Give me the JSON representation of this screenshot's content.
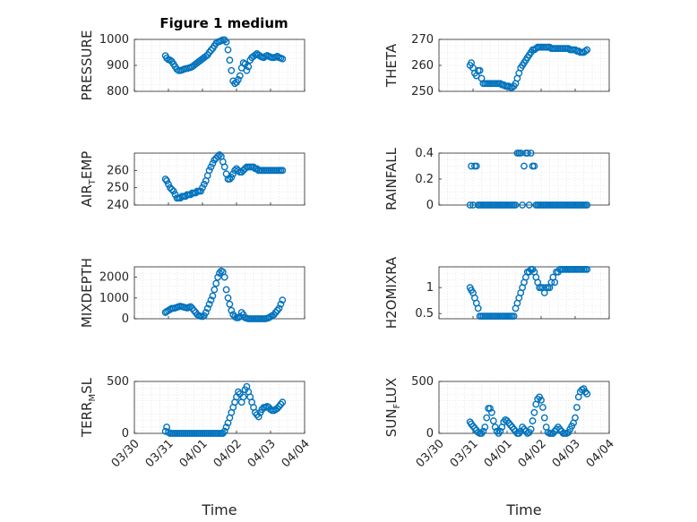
{
  "figure": {
    "title": "Figure 1 medium"
  },
  "colors": {
    "marker": "#0072BD",
    "axis": "#262626",
    "grid": "#d9d9d9",
    "background": "#ffffff"
  },
  "chart_data": [
    {
      "type": "scatter",
      "ylabel": "PRESSURE",
      "ylim": [
        800,
        1000
      ],
      "yticks": [
        "800",
        "900",
        "1000"
      ],
      "x": [
        0.73,
        0.76,
        0.8,
        0.84,
        0.88,
        0.92,
        0.96,
        1.0,
        1.04,
        1.08,
        1.12,
        1.16,
        1.2,
        1.24,
        1.28,
        1.32,
        1.36,
        1.4,
        1.44,
        1.48,
        1.52,
        1.56,
        1.6,
        1.64,
        1.68,
        1.72,
        1.76,
        1.8,
        1.84,
        1.88,
        1.92,
        1.96,
        2.0,
        2.04,
        2.08,
        2.12,
        2.16,
        2.2,
        2.24,
        2.28,
        2.32,
        2.36,
        2.4,
        2.44,
        2.48,
        2.52,
        2.56,
        2.6,
        2.64,
        2.68,
        2.72,
        2.76,
        2.8,
        2.84,
        2.88,
        2.92,
        2.96,
        3.0,
        3.04,
        3.08,
        3.12,
        3.16,
        3.2,
        3.24,
        3.28,
        3.32,
        3.36,
        3.4,
        3.44,
        3.48
      ],
      "y": [
        937,
        928,
        922,
        920,
        915,
        905,
        895,
        885,
        880,
        880,
        882,
        885,
        887,
        888,
        890,
        892,
        895,
        900,
        905,
        910,
        915,
        920,
        925,
        930,
        935,
        940,
        950,
        958,
        965,
        975,
        985,
        990,
        992,
        995,
        998,
        998,
        990,
        960,
        920,
        880,
        840,
        830,
        835,
        845,
        860,
        890,
        910,
        905,
        880,
        895,
        920,
        930,
        935,
        940,
        945,
        940,
        935,
        932,
        930,
        935,
        938,
        935,
        932,
        930,
        930,
        932,
        935,
        930,
        928,
        925
      ]
    },
    {
      "type": "scatter",
      "ylabel": "THETA",
      "ylim": [
        250,
        270
      ],
      "yticks": [
        "250",
        "260",
        "270"
      ],
      "x": [
        0.73,
        0.76,
        0.8,
        0.84,
        0.88,
        0.92,
        0.96,
        1.0,
        1.04,
        1.08,
        1.12,
        1.16,
        1.2,
        1.24,
        1.28,
        1.32,
        1.36,
        1.4,
        1.44,
        1.48,
        1.52,
        1.56,
        1.6,
        1.64,
        1.68,
        1.72,
        1.76,
        1.8,
        1.84,
        1.88,
        1.92,
        1.96,
        2.0,
        2.04,
        2.08,
        2.12,
        2.16,
        2.2,
        2.24,
        2.28,
        2.32,
        2.36,
        2.4,
        2.44,
        2.48,
        2.52,
        2.56,
        2.6,
        2.64,
        2.68,
        2.72,
        2.76,
        2.8,
        2.84,
        2.88,
        2.92,
        2.96,
        3.0,
        3.04,
        3.08,
        3.12,
        3.16,
        3.2,
        3.24,
        3.28,
        3.32,
        3.36,
        3.4,
        3.44,
        3.48
      ],
      "y": [
        260,
        261,
        259,
        257,
        256,
        258,
        258,
        255,
        253,
        253,
        253,
        253,
        253,
        253,
        253,
        253,
        253,
        253,
        253,
        252.5,
        252.5,
        252,
        252,
        252,
        251.5,
        251.5,
        252,
        253,
        255,
        257,
        259,
        260,
        261,
        262,
        263,
        264,
        265,
        266,
        266,
        266.5,
        267,
        267,
        267,
        267,
        267,
        267,
        267,
        267,
        266.5,
        266.5,
        266.5,
        266.5,
        266.5,
        266.5,
        266.5,
        266.5,
        266.5,
        266.5,
        266.5,
        266,
        266,
        266,
        266,
        265.5,
        265.5,
        265,
        265,
        265,
        265.5,
        266
      ]
    },
    {
      "type": "scatter",
      "ylabel": "AIR_TEMP",
      "ylim": [
        240,
        270
      ],
      "yticks": [
        "240",
        "250",
        "260"
      ],
      "x": [
        0.73,
        0.76,
        0.8,
        0.84,
        0.88,
        0.92,
        0.96,
        1.0,
        1.04,
        1.08,
        1.12,
        1.16,
        1.2,
        1.24,
        1.28,
        1.32,
        1.36,
        1.4,
        1.44,
        1.48,
        1.52,
        1.56,
        1.6,
        1.64,
        1.68,
        1.72,
        1.76,
        1.8,
        1.84,
        1.88,
        1.92,
        1.96,
        2.0,
        2.04,
        2.08,
        2.12,
        2.16,
        2.2,
        2.24,
        2.28,
        2.32,
        2.36,
        2.4,
        2.44,
        2.48,
        2.52,
        2.56,
        2.6,
        2.64,
        2.68,
        2.72,
        2.76,
        2.8,
        2.84,
        2.88,
        2.92,
        2.96,
        3.0,
        3.04,
        3.08,
        3.12,
        3.16,
        3.2,
        3.24,
        3.28,
        3.32,
        3.36,
        3.4,
        3.44,
        3.48
      ],
      "y": [
        255,
        254,
        252,
        250,
        249,
        248,
        246,
        244,
        244,
        244,
        245,
        245,
        245,
        246,
        246,
        246,
        247,
        247,
        247,
        248,
        248,
        248,
        250,
        252,
        254,
        257,
        260,
        262,
        264,
        266,
        267,
        268,
        269,
        268,
        265,
        262,
        258,
        255,
        255,
        256,
        258,
        260,
        261,
        260,
        259,
        259,
        260,
        261,
        262,
        262,
        262,
        262,
        262,
        261,
        261,
        260,
        260,
        260,
        260,
        260,
        260,
        260,
        260,
        260,
        260,
        260,
        260,
        260,
        260,
        260
      ]
    },
    {
      "type": "scatter",
      "ylabel": "RAINFALL",
      "ylim": [
        0,
        0.4
      ],
      "yticks": [
        "0",
        "0.2",
        "0.4"
      ],
      "x": [
        0.73,
        0.76,
        0.8,
        0.84,
        0.88,
        0.92,
        0.96,
        1.0,
        1.04,
        1.08,
        1.12,
        1.16,
        1.2,
        1.24,
        1.28,
        1.32,
        1.36,
        1.4,
        1.44,
        1.48,
        1.52,
        1.56,
        1.6,
        1.64,
        1.68,
        1.72,
        1.76,
        1.8,
        1.84,
        1.88,
        1.92,
        1.96,
        2.0,
        2.04,
        2.08,
        2.12,
        2.16,
        2.2,
        2.24,
        2.28,
        2.32,
        2.36,
        2.4,
        2.44,
        2.48,
        2.52,
        2.56,
        2.6,
        2.64,
        2.68,
        2.72,
        2.76,
        2.8,
        2.84,
        2.88,
        2.92,
        2.96,
        3.0,
        3.04,
        3.08,
        3.12,
        3.16,
        3.2,
        3.24,
        3.28,
        3.32,
        3.36,
        3.4,
        3.44,
        3.48
      ],
      "y": [
        0,
        0.3,
        0,
        0.3,
        0.3,
        0,
        0,
        0,
        0,
        0,
        0,
        0,
        0,
        0,
        0,
        0,
        0,
        0,
        0,
        0,
        0,
        0,
        0,
        0,
        0,
        0,
        0,
        0,
        0.4,
        0.4,
        0.4,
        0,
        0.3,
        0.4,
        0.4,
        0,
        0.4,
        0.3,
        0.3,
        0,
        0,
        0,
        0,
        0,
        0,
        0,
        0,
        0,
        0,
        0,
        0,
        0,
        0,
        0,
        0,
        0,
        0,
        0,
        0,
        0,
        0,
        0,
        0,
        0,
        0,
        0,
        0,
        0,
        0,
        0
      ]
    },
    {
      "type": "scatter",
      "ylabel": "MIXDEPTH",
      "ylim": [
        0,
        2500
      ],
      "yticks": [
        "0",
        "1000",
        "2000"
      ],
      "x": [
        0.73,
        0.76,
        0.8,
        0.84,
        0.88,
        0.92,
        0.96,
        1.0,
        1.04,
        1.08,
        1.12,
        1.16,
        1.2,
        1.24,
        1.28,
        1.32,
        1.36,
        1.4,
        1.44,
        1.48,
        1.52,
        1.56,
        1.6,
        1.64,
        1.68,
        1.72,
        1.76,
        1.8,
        1.84,
        1.88,
        1.92,
        1.96,
        2.0,
        2.04,
        2.08,
        2.12,
        2.16,
        2.2,
        2.24,
        2.28,
        2.32,
        2.36,
        2.4,
        2.44,
        2.48,
        2.52,
        2.56,
        2.6,
        2.64,
        2.68,
        2.72,
        2.76,
        2.8,
        2.84,
        2.88,
        2.92,
        2.96,
        3.0,
        3.04,
        3.08,
        3.12,
        3.16,
        3.2,
        3.24,
        3.28,
        3.32,
        3.36,
        3.4,
        3.44,
        3.48
      ],
      "y": [
        300,
        350,
        400,
        450,
        500,
        500,
        520,
        550,
        580,
        600,
        580,
        560,
        540,
        520,
        550,
        580,
        500,
        400,
        300,
        200,
        150,
        120,
        110,
        150,
        300,
        500,
        700,
        900,
        1100,
        1400,
        1700,
        2000,
        2200,
        2300,
        2250,
        2000,
        1400,
        1000,
        700,
        400,
        200,
        100,
        50,
        50,
        100,
        300,
        200,
        50,
        20,
        0,
        0,
        0,
        0,
        0,
        0,
        0,
        0,
        0,
        0,
        0,
        20,
        50,
        100,
        150,
        200,
        300,
        400,
        500,
        700,
        900
      ]
    },
    {
      "type": "scatter",
      "ylabel": "H2OMIXRA",
      "ylim": [
        0.4,
        1.4
      ],
      "yticks": [
        "0.5",
        "1"
      ],
      "x": [
        0.73,
        0.76,
        0.8,
        0.84,
        0.88,
        0.92,
        0.96,
        1.0,
        1.04,
        1.08,
        1.12,
        1.16,
        1.2,
        1.24,
        1.28,
        1.32,
        1.36,
        1.4,
        1.44,
        1.48,
        1.52,
        1.56,
        1.6,
        1.64,
        1.68,
        1.72,
        1.76,
        1.8,
        1.84,
        1.88,
        1.92,
        1.96,
        2.0,
        2.04,
        2.08,
        2.12,
        2.16,
        2.2,
        2.24,
        2.28,
        2.32,
        2.36,
        2.4,
        2.44,
        2.48,
        2.52,
        2.56,
        2.6,
        2.64,
        2.68,
        2.72,
        2.76,
        2.8,
        2.84,
        2.88,
        2.92,
        2.96,
        3.0,
        3.04,
        3.08,
        3.12,
        3.16,
        3.2,
        3.24,
        3.28,
        3.32,
        3.36,
        3.4,
        3.44,
        3.48
      ],
      "y": [
        1.0,
        0.95,
        0.9,
        0.8,
        0.7,
        0.6,
        0.45,
        0.45,
        0.45,
        0.45,
        0.45,
        0.45,
        0.45,
        0.45,
        0.45,
        0.45,
        0.45,
        0.45,
        0.45,
        0.45,
        0.45,
        0.45,
        0.45,
        0.45,
        0.45,
        0.45,
        0.45,
        0.6,
        0.7,
        0.8,
        0.9,
        1.0,
        1.1,
        1.2,
        1.3,
        1.3,
        1.35,
        1.35,
        1.3,
        1.2,
        1.1,
        1.0,
        1.0,
        1.0,
        0.9,
        1.0,
        1.0,
        1.0,
        1.1,
        1.2,
        1.1,
        1.3,
        1.3,
        1.35,
        1.35,
        1.35,
        1.35,
        1.35,
        1.35,
        1.35,
        1.35,
        1.35,
        1.35,
        1.35,
        1.35,
        1.35,
        1.35,
        1.35,
        1.35,
        1.35
      ]
    },
    {
      "type": "scatter",
      "ylabel": "TERR_MSL",
      "ylim": [
        0,
        500
      ],
      "yticks": [
        "0",
        "500"
      ],
      "xticks": [
        "03/30",
        "03/31",
        "04/01",
        "04/02",
        "04/03",
        "04/04"
      ],
      "xlabel": "Time",
      "xlim": [
        0,
        4
      ],
      "x": [
        0.73,
        0.76,
        0.8,
        0.84,
        0.88,
        0.92,
        0.96,
        1.0,
        1.04,
        1.08,
        1.12,
        1.16,
        1.2,
        1.24,
        1.28,
        1.32,
        1.36,
        1.4,
        1.44,
        1.48,
        1.52,
        1.56,
        1.6,
        1.64,
        1.68,
        1.72,
        1.76,
        1.8,
        1.84,
        1.88,
        1.92,
        1.96,
        2.0,
        2.04,
        2.08,
        2.12,
        2.16,
        2.2,
        2.24,
        2.28,
        2.32,
        2.36,
        2.4,
        2.44,
        2.48,
        2.52,
        2.56,
        2.6,
        2.64,
        2.68,
        2.72,
        2.76,
        2.8,
        2.84,
        2.88,
        2.92,
        2.96,
        3.0,
        3.04,
        3.08,
        3.12,
        3.16,
        3.2,
        3.24,
        3.28,
        3.32,
        3.36,
        3.4,
        3.44,
        3.48
      ],
      "y": [
        20,
        60,
        10,
        0,
        0,
        0,
        0,
        0,
        0,
        0,
        0,
        0,
        0,
        0,
        0,
        0,
        0,
        0,
        0,
        0,
        0,
        0,
        0,
        0,
        0,
        0,
        0,
        0,
        0,
        0,
        0,
        0,
        0,
        0,
        0,
        20,
        60,
        100,
        150,
        200,
        250,
        300,
        350,
        400,
        380,
        300,
        350,
        420,
        450,
        400,
        350,
        300,
        250,
        200,
        180,
        160,
        200,
        230,
        250,
        250,
        260,
        250,
        230,
        220,
        220,
        230,
        240,
        260,
        280,
        300
      ]
    },
    {
      "type": "scatter",
      "ylabel": "SUN_FLUX",
      "ylim": [
        0,
        500
      ],
      "yticks": [
        "0",
        "500"
      ],
      "xticks": [
        "03/30",
        "03/31",
        "04/01",
        "04/02",
        "04/03",
        "04/04"
      ],
      "xlabel": "Time",
      "xlim": [
        0,
        4
      ],
      "x": [
        0.73,
        0.76,
        0.8,
        0.84,
        0.88,
        0.92,
        0.96,
        1.0,
        1.04,
        1.08,
        1.12,
        1.16,
        1.2,
        1.24,
        1.28,
        1.32,
        1.36,
        1.4,
        1.44,
        1.48,
        1.52,
        1.56,
        1.6,
        1.64,
        1.68,
        1.72,
        1.76,
        1.8,
        1.84,
        1.88,
        1.92,
        1.96,
        2.0,
        2.04,
        2.08,
        2.12,
        2.16,
        2.2,
        2.24,
        2.28,
        2.32,
        2.36,
        2.4,
        2.44,
        2.48,
        2.52,
        2.56,
        2.6,
        2.64,
        2.68,
        2.72,
        2.76,
        2.8,
        2.84,
        2.88,
        2.92,
        2.96,
        3.0,
        3.04,
        3.08,
        3.12,
        3.16,
        3.2,
        3.24,
        3.28,
        3.32,
        3.36,
        3.4,
        3.44,
        3.48
      ],
      "y": [
        110,
        90,
        70,
        50,
        30,
        10,
        0,
        0,
        20,
        60,
        150,
        240,
        240,
        200,
        120,
        60,
        20,
        0,
        20,
        60,
        110,
        130,
        120,
        100,
        80,
        60,
        40,
        20,
        0,
        0,
        20,
        60,
        40,
        20,
        0,
        10,
        40,
        120,
        200,
        280,
        330,
        350,
        320,
        250,
        150,
        60,
        10,
        0,
        0,
        0,
        20,
        40,
        60,
        40,
        20,
        0,
        0,
        0,
        10,
        40,
        70,
        100,
        150,
        250,
        350,
        400,
        420,
        430,
        400,
        380
      ]
    }
  ]
}
